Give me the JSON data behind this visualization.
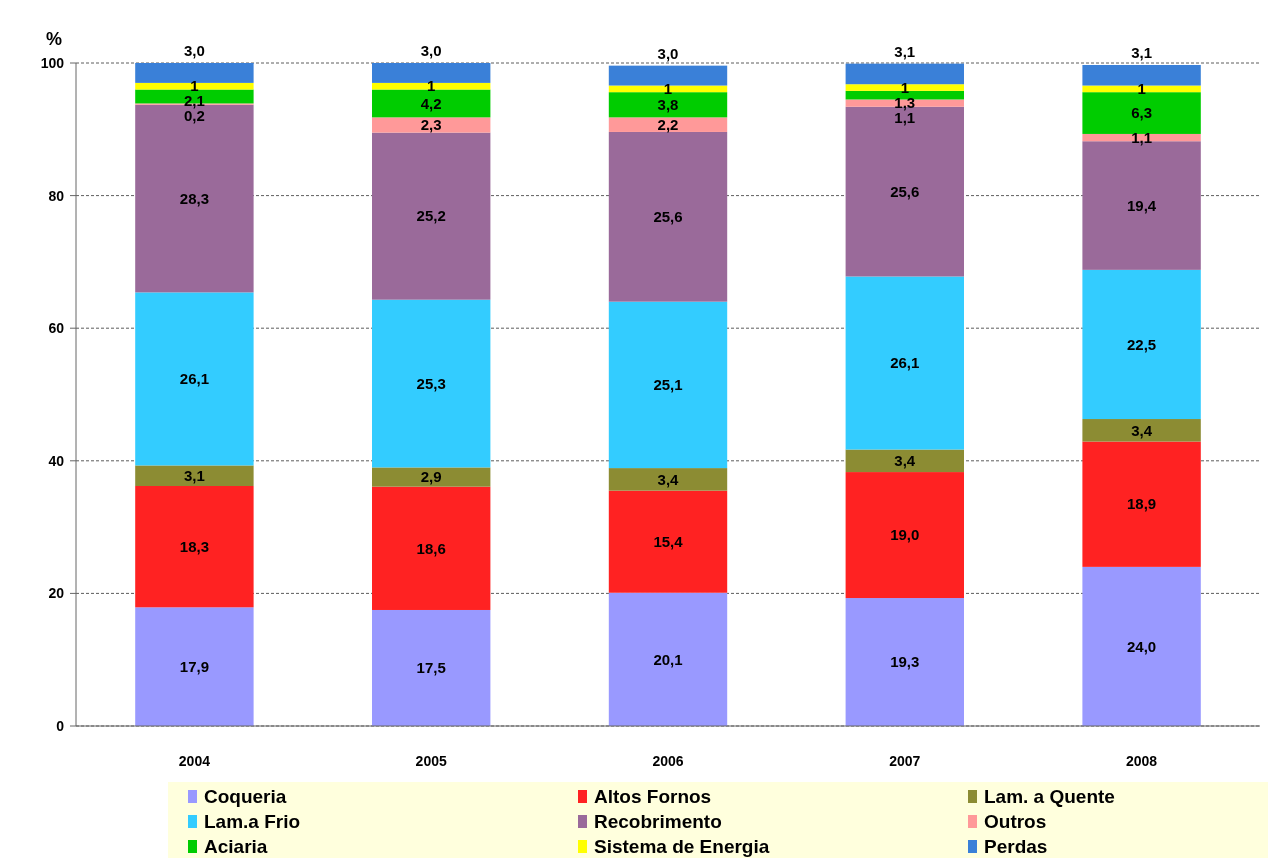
{
  "chart_data": {
    "type": "bar",
    "stacked": true,
    "ylabel": "%",
    "categories": [
      "2004",
      "2005",
      "2006",
      "2007",
      "2008"
    ],
    "ylim": [
      0,
      100
    ],
    "yticks": [
      0,
      20,
      40,
      60,
      80,
      100
    ],
    "grid": "y",
    "legend": "bottom",
    "series": [
      {
        "name": "Coqueria",
        "color": "#9999ff",
        "values": [
          17.9,
          17.5,
          20.1,
          19.3,
          24.0
        ],
        "value_labels": [
          "17,9",
          "17,5",
          "20,1",
          "19,3",
          "24,0"
        ]
      },
      {
        "name": "Altos Fornos",
        "color": "#ff2222",
        "values": [
          18.3,
          18.6,
          15.4,
          19.0,
          18.9
        ],
        "value_labels": [
          "18,3",
          "18,6",
          "15,4",
          "19,0",
          "18,9"
        ]
      },
      {
        "name": "Lam. a Quente",
        "color": "#8c8c33",
        "values": [
          3.1,
          2.9,
          3.4,
          3.4,
          3.4
        ],
        "value_labels": [
          "3,1",
          "2,9",
          "3,4",
          "3,4",
          "3,4"
        ]
      },
      {
        "name": "Lam.a Frio",
        "color": "#33ccff",
        "values": [
          26.1,
          25.3,
          25.1,
          26.1,
          22.5
        ],
        "value_labels": [
          "26,1",
          "25,3",
          "25,1",
          "26,1",
          "22,5"
        ]
      },
      {
        "name": "Recobrimento",
        "color": "#9a6a9a",
        "values": [
          28.3,
          25.2,
          25.6,
          25.6,
          19.4
        ],
        "value_labels": [
          "28,3",
          "25,2",
          "25,6",
          "25,6",
          "19,4"
        ]
      },
      {
        "name": "Outros",
        "color": "#ff9999",
        "values": [
          0.2,
          2.3,
          2.2,
          1.1,
          1.1
        ],
        "value_labels": [
          "0,2",
          "2,3",
          "2,2",
          "1,1",
          "1,1"
        ]
      },
      {
        "name": "Aciaria",
        "color": "#00cc00",
        "values": [
          2.1,
          4.2,
          3.8,
          1.3,
          6.3
        ],
        "value_labels": [
          "2,1",
          "4,2",
          "3,8",
          "1,3",
          "6,3"
        ]
      },
      {
        "name": "Sistema de Energia",
        "color": "#ffff00",
        "values": [
          1,
          1,
          1,
          1,
          1
        ],
        "value_labels": [
          "1",
          "1",
          "1",
          "1",
          "1"
        ]
      },
      {
        "name": "Perdas",
        "color": "#3a80d8",
        "values": [
          3.0,
          3.0,
          3.0,
          3.1,
          3.1
        ],
        "value_labels": [
          "3,0",
          "3,0",
          "3,0",
          "3,1",
          "3,1"
        ]
      }
    ]
  }
}
